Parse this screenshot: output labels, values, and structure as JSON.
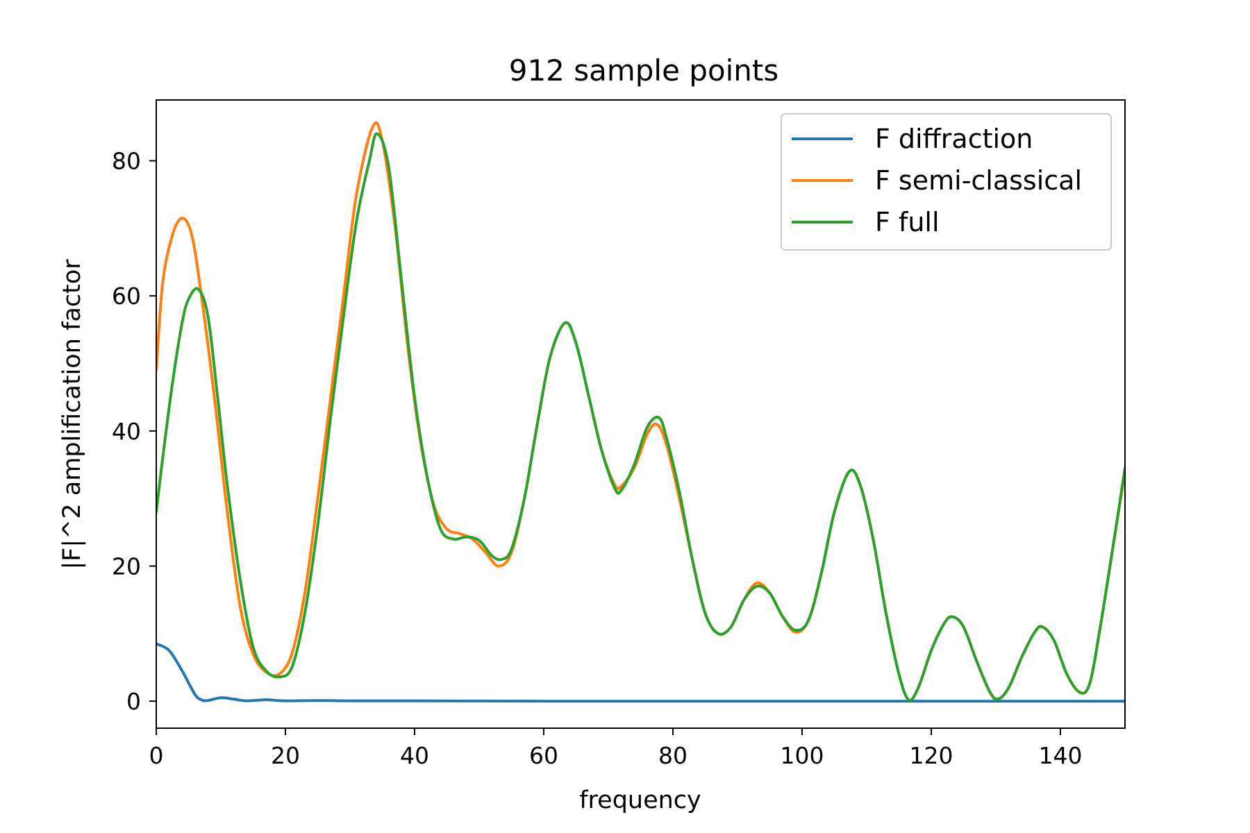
{
  "chart_data": {
    "type": "line",
    "title": "912 sample points",
    "xlabel": "frequency",
    "ylabel": "|F|^2 amplification factor",
    "xlim": [
      0,
      150
    ],
    "ylim": [
      -4,
      89
    ],
    "xticks": [
      0,
      20,
      40,
      60,
      80,
      100,
      120,
      140
    ],
    "yticks": [
      0,
      20,
      40,
      60,
      80
    ],
    "grid": false,
    "legend_position": "upper right",
    "series": [
      {
        "name": "F diffraction",
        "color": "#1f77b4",
        "points": [
          [
            0,
            8.5
          ],
          [
            2,
            7.5
          ],
          [
            4,
            4.5
          ],
          [
            6,
            1.0
          ],
          [
            7,
            0.2
          ],
          [
            8,
            0.1
          ],
          [
            10,
            0.5
          ],
          [
            12,
            0.3
          ],
          [
            14,
            0.05
          ],
          [
            17,
            0.2
          ],
          [
            20,
            0.05
          ],
          [
            25,
            0.1
          ],
          [
            30,
            0.05
          ],
          [
            40,
            0.05
          ],
          [
            60,
            0.0
          ],
          [
            100,
            0.0
          ],
          [
            150,
            0.0
          ]
        ]
      },
      {
        "name": "F semi-classical",
        "color": "#ff7f0e",
        "points": [
          [
            0,
            49
          ],
          [
            1,
            62
          ],
          [
            2.5,
            69
          ],
          [
            4,
            71.5
          ],
          [
            5.5,
            69
          ],
          [
            7,
            60
          ],
          [
            9,
            45
          ],
          [
            11,
            28
          ],
          [
            13,
            14
          ],
          [
            15,
            7
          ],
          [
            17,
            4.3
          ],
          [
            19,
            4.0
          ],
          [
            21,
            7
          ],
          [
            23,
            16
          ],
          [
            25,
            30
          ],
          [
            27,
            45
          ],
          [
            29,
            60
          ],
          [
            31,
            75
          ],
          [
            33.5,
            85
          ],
          [
            35,
            83
          ],
          [
            37,
            70
          ],
          [
            39,
            52
          ],
          [
            41,
            38
          ],
          [
            43,
            29
          ],
          [
            45,
            25.5
          ],
          [
            47,
            24.8
          ],
          [
            49,
            24
          ],
          [
            51,
            22
          ],
          [
            53,
            20
          ],
          [
            55,
            22
          ],
          [
            57,
            30
          ],
          [
            59,
            41
          ],
          [
            61,
            51
          ],
          [
            63.3,
            56
          ],
          [
            65,
            53
          ],
          [
            67,
            45
          ],
          [
            69,
            37
          ],
          [
            71,
            32
          ],
          [
            72,
            31.8
          ],
          [
            74,
            34.5
          ],
          [
            76,
            39.5
          ],
          [
            77.5,
            41
          ],
          [
            79,
            38
          ],
          [
            81,
            30
          ],
          [
            83,
            21
          ],
          [
            85,
            13
          ],
          [
            87,
            10
          ],
          [
            89,
            11
          ],
          [
            91,
            15
          ],
          [
            93,
            17.5
          ],
          [
            95,
            16
          ],
          [
            97,
            12.5
          ],
          [
            99,
            10.2
          ],
          [
            101,
            12
          ],
          [
            103,
            19
          ],
          [
            105,
            28
          ],
          [
            107.3,
            34
          ],
          [
            109,
            32
          ],
          [
            111,
            24
          ],
          [
            113,
            13
          ],
          [
            115,
            4
          ],
          [
            116.5,
            0.2
          ],
          [
            118,
            2
          ],
          [
            120,
            7.5
          ],
          [
            122,
            11.5
          ],
          [
            123.3,
            12.5
          ],
          [
            125,
            11
          ],
          [
            127,
            6
          ],
          [
            129,
            1.5
          ],
          [
            130.3,
            0.3
          ],
          [
            132,
            2
          ],
          [
            134,
            6.5
          ],
          [
            136,
            10.2
          ],
          [
            137.2,
            11
          ],
          [
            139,
            9
          ],
          [
            141,
            4
          ],
          [
            143,
            1.3
          ],
          [
            144.5,
            2.5
          ],
          [
            146,
            10
          ],
          [
            148,
            22
          ],
          [
            150,
            34
          ]
        ]
      },
      {
        "name": "F full",
        "color": "#2ca02c",
        "points": [
          [
            0,
            28
          ],
          [
            1,
            36
          ],
          [
            2.5,
            47
          ],
          [
            4,
            56
          ],
          [
            5,
            59.5
          ],
          [
            6.5,
            61
          ],
          [
            8,
            57
          ],
          [
            9.5,
            45
          ],
          [
            11,
            32
          ],
          [
            13,
            18
          ],
          [
            15,
            8
          ],
          [
            17,
            4.5
          ],
          [
            19,
            3.6
          ],
          [
            21,
            5
          ],
          [
            23,
            13
          ],
          [
            25,
            26
          ],
          [
            27,
            42
          ],
          [
            29,
            57
          ],
          [
            31,
            71
          ],
          [
            33,
            80
          ],
          [
            34.2,
            84
          ],
          [
            36,
            79
          ],
          [
            38,
            62
          ],
          [
            40,
            45
          ],
          [
            42,
            33
          ],
          [
            44,
            25.5
          ],
          [
            46,
            24
          ],
          [
            48,
            24.3
          ],
          [
            50,
            23.8
          ],
          [
            52,
            21.5
          ],
          [
            53.5,
            21
          ],
          [
            55,
            22.5
          ],
          [
            57,
            30
          ],
          [
            59,
            41
          ],
          [
            61,
            51
          ],
          [
            63.3,
            56
          ],
          [
            65,
            53
          ],
          [
            67,
            45
          ],
          [
            69,
            37
          ],
          [
            71,
            31.5
          ],
          [
            72,
            31.2
          ],
          [
            74,
            35
          ],
          [
            76,
            40.5
          ],
          [
            77.8,
            42
          ],
          [
            79,
            39
          ],
          [
            81,
            31
          ],
          [
            83,
            21
          ],
          [
            85,
            13
          ],
          [
            87,
            10
          ],
          [
            89,
            11
          ],
          [
            91,
            15
          ],
          [
            93,
            17
          ],
          [
            95,
            16
          ],
          [
            97,
            12.5
          ],
          [
            99,
            10.5
          ],
          [
            101,
            12
          ],
          [
            103,
            19
          ],
          [
            105,
            28
          ],
          [
            107.3,
            34
          ],
          [
            109,
            32
          ],
          [
            111,
            24
          ],
          [
            113,
            13
          ],
          [
            115,
            4
          ],
          [
            116.5,
            0.2
          ],
          [
            118,
            2
          ],
          [
            120,
            7.5
          ],
          [
            122,
            11.5
          ],
          [
            123.3,
            12.5
          ],
          [
            125,
            11
          ],
          [
            127,
            6
          ],
          [
            129,
            1.5
          ],
          [
            130.3,
            0.3
          ],
          [
            132,
            2
          ],
          [
            134,
            6.5
          ],
          [
            136,
            10.2
          ],
          [
            137.2,
            11
          ],
          [
            139,
            9
          ],
          [
            141,
            4
          ],
          [
            143,
            1.3
          ],
          [
            144.5,
            2.5
          ],
          [
            146,
            10
          ],
          [
            148,
            22
          ],
          [
            150,
            34.5
          ]
        ]
      }
    ]
  }
}
